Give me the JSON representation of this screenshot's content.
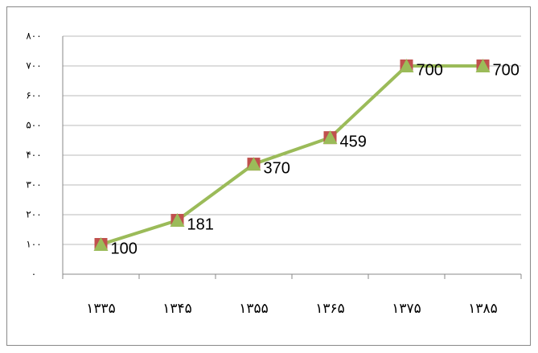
{
  "chart_data": {
    "type": "line",
    "categories": [
      "۱۳۳۵",
      "۱۳۴۵",
      "۱۳۵۵",
      "۱۳۶۵",
      "۱۳۷۵",
      "۱۳۸۵"
    ],
    "values": [
      100,
      181,
      370,
      459,
      700,
      700
    ],
    "color": "#9bbb59",
    "square_color": "#c0504d",
    "ylim": [
      0,
      800
    ],
    "yticks": [
      {
        "value": 0,
        "label": "۰"
      },
      {
        "value": 100,
        "label": "۱۰۰"
      },
      {
        "value": 200,
        "label": "۲۰۰"
      },
      {
        "value": 300,
        "label": "۳۰۰"
      },
      {
        "value": 400,
        "label": "۴۰۰"
      },
      {
        "value": 500,
        "label": "۵۰۰"
      },
      {
        "value": 600,
        "label": "۶۰۰"
      },
      {
        "value": 700,
        "label": "۷۰۰"
      },
      {
        "value": 800,
        "label": "۸۰۰"
      }
    ],
    "grid": true
  }
}
